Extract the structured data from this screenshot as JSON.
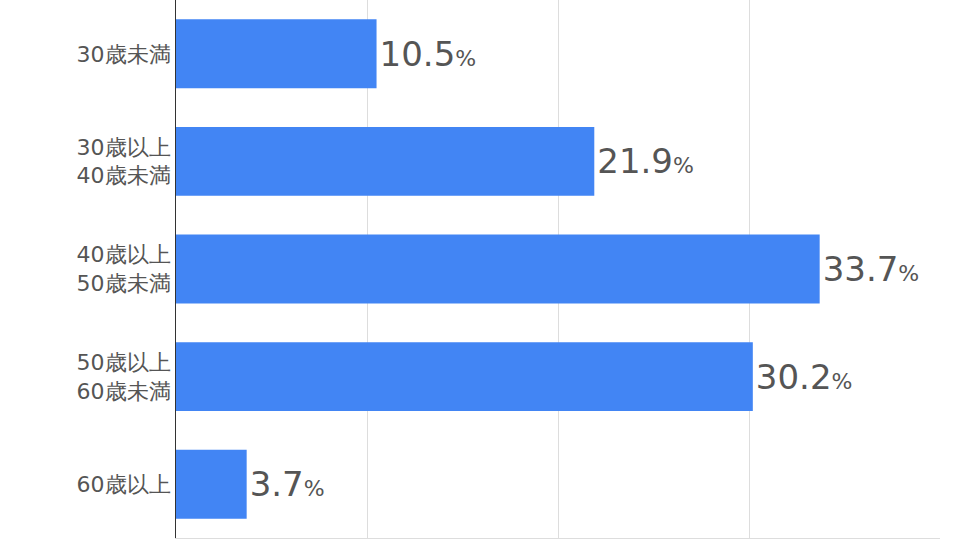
{
  "chart_data": {
    "type": "bar",
    "orientation": "horizontal",
    "categories": [
      "30歳未満",
      "30歳以上\n40歳未満",
      "40歳以上\n50歳未満",
      "50歳以上\n60歳未満",
      "60歳以上"
    ],
    "values": [
      10.5,
      21.9,
      33.7,
      30.2,
      3.7
    ],
    "value_labels": [
      "10.5%",
      "21.9%",
      "33.7%",
      "30.2%",
      "3.7%"
    ],
    "color": "#4285f4",
    "xlim": [
      0,
      40
    ],
    "xticks": [
      0,
      10,
      20,
      30
    ],
    "grid": true,
    "data_labels": true,
    "tick_labels": "y"
  }
}
